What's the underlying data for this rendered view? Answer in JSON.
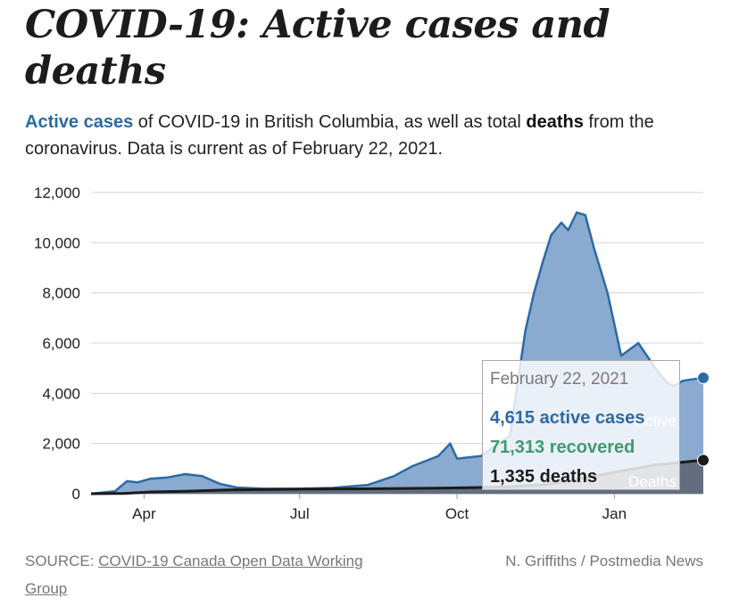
{
  "header": {
    "title": "COVID-19: Active cases and deaths",
    "subtitle_active": "Active cases",
    "subtitle_mid": " of COVID-19 in British Columbia, as well as total ",
    "subtitle_deaths": "deaths",
    "subtitle_end": " from the coronavirus. Data is current as of February 22, 2021."
  },
  "colors": {
    "active_line": "#2b6aa6",
    "active_fill": "#8aaad0",
    "deaths_line": "#1a1a1a",
    "deaths_fill": "#5a6472",
    "recovered": "#3e9b6d",
    "grid": "#d6d6d6"
  },
  "chart_data": {
    "type": "area",
    "title": "",
    "xlabel": "",
    "ylabel": "",
    "ylim": [
      0,
      12000
    ],
    "yticks": [
      "0",
      "2,000",
      "4,000",
      "6,000",
      "8,000",
      "10,000",
      "12,000"
    ],
    "ytick_values": [
      0,
      2000,
      4000,
      6000,
      8000,
      10000,
      12000
    ],
    "xlim": [
      "2020-03-01",
      "2021-02-22"
    ],
    "xticks": [
      {
        "date": "2020-04-01",
        "label": "Apr"
      },
      {
        "date": "2020-07-01",
        "label": "Jul"
      },
      {
        "date": "2020-10-01",
        "label": "Oct"
      },
      {
        "date": "2021-01-01",
        "label": "Jan"
      }
    ],
    "grid": true,
    "legend": "inline labels (Active, Deaths) near right edge",
    "series": [
      {
        "name": "Active",
        "x": [
          "2020-03-01",
          "2020-03-15",
          "2020-03-22",
          "2020-03-28",
          "2020-04-05",
          "2020-04-15",
          "2020-04-25",
          "2020-05-05",
          "2020-05-15",
          "2020-05-25",
          "2020-06-10",
          "2020-07-01",
          "2020-07-20",
          "2020-08-10",
          "2020-08-25",
          "2020-09-05",
          "2020-09-20",
          "2020-09-27",
          "2020-10-01",
          "2020-10-15",
          "2020-10-25",
          "2020-11-01",
          "2020-11-05",
          "2020-11-10",
          "2020-11-15",
          "2020-11-20",
          "2020-11-25",
          "2020-12-01",
          "2020-12-05",
          "2020-12-10",
          "2020-12-15",
          "2020-12-20",
          "2020-12-28",
          "2021-01-05",
          "2021-01-15",
          "2021-01-25",
          "2021-02-01",
          "2021-02-05",
          "2021-02-10",
          "2021-02-15",
          "2021-02-22"
        ],
        "y": [
          0,
          100,
          500,
          450,
          600,
          650,
          780,
          700,
          400,
          250,
          200,
          200,
          230,
          350,
          700,
          1100,
          1500,
          2000,
          1400,
          1500,
          2000,
          2300,
          4200,
          6500,
          8000,
          9200,
          10300,
          10800,
          10500,
          11200,
          11100,
          9800,
          8000,
          5500,
          6000,
          5000,
          4400,
          4300,
          4500,
          4550,
          4615
        ]
      },
      {
        "name": "Deaths",
        "x": [
          "2020-03-01",
          "2020-03-20",
          "2020-04-05",
          "2020-04-25",
          "2020-05-20",
          "2020-07-01",
          "2020-08-15",
          "2020-09-20",
          "2020-10-15",
          "2020-11-01",
          "2020-11-20",
          "2020-12-05",
          "2020-12-20",
          "2021-01-05",
          "2021-01-25",
          "2021-02-22"
        ],
        "y": [
          0,
          10,
          70,
          100,
          150,
          180,
          200,
          220,
          250,
          280,
          360,
          500,
          700,
          900,
          1150,
          1335
        ]
      }
    ],
    "annotations": [
      {
        "label": "Active",
        "series": "Active"
      },
      {
        "label": "Deaths",
        "series": "Deaths"
      }
    ]
  },
  "tooltip": {
    "date": "February 22, 2021",
    "active": "4,615 active cases",
    "recovered": "71,313 recovered",
    "deaths": "1,335 deaths"
  },
  "footer": {
    "source_prefix": "SOURCE: ",
    "source_link": "COVID-19 Canada Open Data Working Group",
    "credit": "N. Griffiths / Postmedia News"
  }
}
